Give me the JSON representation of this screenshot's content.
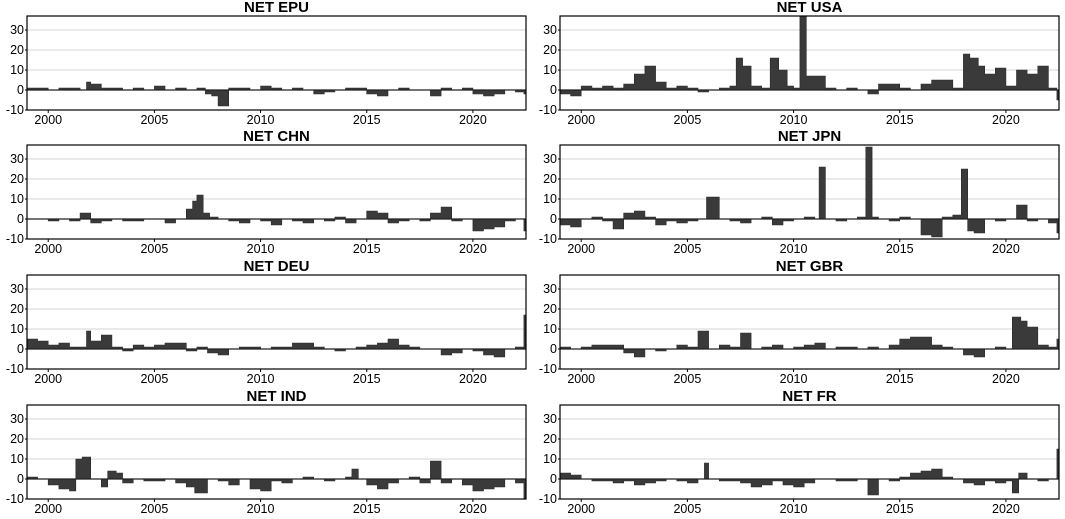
{
  "chart_data": [
    {
      "type": "area",
      "title": "NET EPU",
      "xlabel": "",
      "ylabel": "",
      "xlim": [
        1999.0,
        2022.5
      ],
      "ylim": [
        -10,
        37
      ],
      "yticks": [
        -10,
        0,
        10,
        20,
        30
      ],
      "xticks": [
        2000,
        2005,
        2010,
        2015,
        2020
      ],
      "grid": true,
      "x": [
        1999.0,
        1999.5,
        2000.0,
        2000.5,
        2001.0,
        2001.5,
        2001.8,
        2002.0,
        2002.5,
        2003.0,
        2003.5,
        2004.0,
        2004.5,
        2005.0,
        2005.5,
        2006.0,
        2006.5,
        2007.0,
        2007.4,
        2007.7,
        2008.0,
        2008.5,
        2009.0,
        2009.5,
        2010.0,
        2010.5,
        2011.0,
        2011.5,
        2012.0,
        2012.5,
        2013.0,
        2013.5,
        2014.0,
        2014.5,
        2015.0,
        2015.5,
        2016.0,
        2016.5,
        2017.0,
        2017.5,
        2018.0,
        2018.5,
        2019.0,
        2019.5,
        2020.0,
        2020.5,
        2021.0,
        2021.5,
        2022.0,
        2022.4
      ],
      "y": [
        1,
        1,
        0,
        1,
        1,
        0,
        4,
        3,
        1,
        1,
        0,
        1,
        0,
        2,
        0,
        1,
        0,
        1,
        -2,
        -3,
        -8,
        1,
        1,
        0,
        2,
        1,
        0,
        1,
        0,
        -2,
        -1,
        0,
        1,
        1,
        -2,
        -3,
        0,
        1,
        0,
        0,
        -3,
        1,
        0,
        1,
        -2,
        -3,
        -2,
        0,
        -1,
        -2
      ]
    },
    {
      "type": "area",
      "title": "NET USA",
      "xlabel": "",
      "ylabel": "",
      "xlim": [
        1999.0,
        2022.5
      ],
      "ylim": [
        -10,
        37
      ],
      "yticks": [
        -10,
        0,
        10,
        20,
        30
      ],
      "xticks": [
        2000,
        2005,
        2010,
        2015,
        2020
      ],
      "grid": true,
      "x": [
        1999.0,
        1999.5,
        2000.0,
        2000.5,
        2001.0,
        2001.5,
        2002.0,
        2002.5,
        2003.0,
        2003.5,
        2004.0,
        2004.5,
        2005.0,
        2005.5,
        2006.0,
        2006.5,
        2007.0,
        2007.3,
        2007.6,
        2008.0,
        2008.5,
        2008.9,
        2009.3,
        2009.7,
        2010.0,
        2010.3,
        2010.6,
        2011.0,
        2011.5,
        2012.0,
        2012.5,
        2013.0,
        2013.5,
        2014.0,
        2014.5,
        2015.0,
        2015.5,
        2016.0,
        2016.5,
        2017.0,
        2017.5,
        2018.0,
        2018.3,
        2018.7,
        2019.0,
        2019.5,
        2020.0,
        2020.5,
        2021.0,
        2021.5,
        2022.0,
        2022.4
      ],
      "y": [
        -2,
        -3,
        2,
        1,
        2,
        1,
        3,
        8,
        12,
        4,
        1,
        2,
        1,
        -1,
        0,
        1,
        2,
        16,
        12,
        2,
        1,
        16,
        10,
        2,
        1,
        37,
        7,
        7,
        1,
        0,
        1,
        0,
        -2,
        3,
        3,
        1,
        0,
        3,
        5,
        5,
        1,
        18,
        16,
        12,
        8,
        11,
        2,
        10,
        8,
        12,
        1,
        -5
      ]
    },
    {
      "type": "area",
      "title": "NET CHN",
      "xlabel": "",
      "ylabel": "",
      "xlim": [
        1999.0,
        2022.5
      ],
      "ylim": [
        -10,
        37
      ],
      "yticks": [
        -10,
        0,
        10,
        20,
        30
      ],
      "xticks": [
        2000,
        2005,
        2010,
        2015,
        2020
      ],
      "grid": true,
      "x": [
        1999.0,
        1999.5,
        2000.0,
        2000.5,
        2001.0,
        2001.5,
        2002.0,
        2002.5,
        2003.0,
        2003.5,
        2004.0,
        2004.5,
        2005.0,
        2005.5,
        2006.0,
        2006.5,
        2006.8,
        2007.0,
        2007.3,
        2007.6,
        2008.0,
        2008.5,
        2009.0,
        2009.5,
        2010.0,
        2010.5,
        2011.0,
        2011.5,
        2012.0,
        2012.5,
        2013.0,
        2013.5,
        2014.0,
        2014.5,
        2015.0,
        2015.5,
        2016.0,
        2016.5,
        2017.0,
        2017.5,
        2018.0,
        2018.5,
        2019.0,
        2019.5,
        2020.0,
        2020.5,
        2021.0,
        2021.5,
        2022.0,
        2022.4
      ],
      "y": [
        0,
        0,
        -1,
        0,
        -1,
        3,
        -2,
        -1,
        0,
        -1,
        -1,
        0,
        0,
        -2,
        0,
        5,
        9,
        12,
        3,
        1,
        0,
        -1,
        -2,
        0,
        -1,
        -3,
        0,
        -1,
        -2,
        0,
        -1,
        1,
        -2,
        0,
        4,
        3,
        -2,
        -1,
        0,
        -1,
        3,
        6,
        -1,
        0,
        -6,
        -5,
        -4,
        -1,
        0,
        -6
      ]
    },
    {
      "type": "area",
      "title": "NET JPN",
      "xlabel": "",
      "ylabel": "",
      "xlim": [
        1999.0,
        2022.5
      ],
      "ylim": [
        -10,
        37
      ],
      "yticks": [
        -10,
        0,
        10,
        20,
        30
      ],
      "xticks": [
        2000,
        2005,
        2010,
        2015,
        2020
      ],
      "grid": true,
      "x": [
        1999.0,
        1999.5,
        2000.0,
        2000.5,
        2001.0,
        2001.5,
        2002.0,
        2002.5,
        2003.0,
        2003.5,
        2004.0,
        2004.5,
        2005.0,
        2005.5,
        2005.9,
        2006.5,
        2007.0,
        2007.5,
        2008.0,
        2008.5,
        2009.0,
        2009.5,
        2010.0,
        2010.5,
        2011.0,
        2011.2,
        2011.5,
        2012.0,
        2012.5,
        2013.0,
        2013.4,
        2013.7,
        2014.0,
        2014.5,
        2015.0,
        2015.5,
        2016.0,
        2016.5,
        2017.0,
        2017.5,
        2017.9,
        2018.2,
        2018.5,
        2019.0,
        2019.5,
        2020.0,
        2020.5,
        2021.0,
        2021.5,
        2022.0,
        2022.4
      ],
      "y": [
        -3,
        -4,
        0,
        1,
        -1,
        -5,
        3,
        4,
        1,
        -3,
        -1,
        -2,
        -1,
        0,
        11,
        0,
        -1,
        -2,
        0,
        1,
        -3,
        -1,
        0,
        1,
        0,
        26,
        0,
        -1,
        0,
        1,
        36,
        1,
        0,
        -1,
        1,
        0,
        -8,
        -9,
        1,
        2,
        25,
        -6,
        -7,
        0,
        -1,
        0,
        7,
        -1,
        0,
        -2,
        -7
      ]
    },
    {
      "type": "area",
      "title": "NET DEU",
      "xlabel": "",
      "ylabel": "",
      "xlim": [
        1999.0,
        2022.5
      ],
      "ylim": [
        -10,
        37
      ],
      "yticks": [
        -10,
        0,
        10,
        20,
        30
      ],
      "xticks": [
        2000,
        2005,
        2010,
        2015,
        2020
      ],
      "grid": true,
      "x": [
        1999.0,
        1999.5,
        2000.0,
        2000.5,
        2001.0,
        2001.5,
        2001.8,
        2002.0,
        2002.5,
        2003.0,
        2003.5,
        2004.0,
        2004.5,
        2005.0,
        2005.5,
        2006.0,
        2006.5,
        2007.0,
        2007.5,
        2008.0,
        2008.5,
        2009.0,
        2009.5,
        2010.0,
        2010.5,
        2011.0,
        2011.5,
        2012.0,
        2012.5,
        2013.0,
        2013.5,
        2014.0,
        2014.5,
        2015.0,
        2015.5,
        2016.0,
        2016.5,
        2017.0,
        2017.5,
        2018.0,
        2018.5,
        2019.0,
        2019.5,
        2020.0,
        2020.5,
        2021.0,
        2021.5,
        2022.0,
        2022.4
      ],
      "y": [
        5,
        4,
        2,
        3,
        1,
        1,
        9,
        4,
        7,
        1,
        -1,
        2,
        1,
        2,
        3,
        3,
        -1,
        1,
        -2,
        -3,
        0,
        1,
        1,
        0,
        1,
        1,
        3,
        3,
        1,
        0,
        -1,
        0,
        1,
        2,
        3,
        5,
        2,
        1,
        0,
        0,
        -3,
        -2,
        0,
        -1,
        -3,
        -4,
        0,
        1,
        17
      ]
    },
    {
      "type": "area",
      "title": "NET GBR",
      "xlabel": "",
      "ylabel": "",
      "xlim": [
        1999.0,
        2022.5
      ],
      "ylim": [
        -10,
        37
      ],
      "yticks": [
        -10,
        0,
        10,
        20,
        30
      ],
      "xticks": [
        2000,
        2005,
        2010,
        2015,
        2020
      ],
      "grid": true,
      "x": [
        1999.0,
        1999.5,
        2000.0,
        2000.5,
        2001.0,
        2001.5,
        2002.0,
        2002.5,
        2003.0,
        2003.5,
        2004.0,
        2004.5,
        2005.0,
        2005.5,
        2006.0,
        2006.5,
        2007.0,
        2007.5,
        2008.0,
        2008.5,
        2009.0,
        2009.5,
        2010.0,
        2010.5,
        2011.0,
        2011.5,
        2012.0,
        2012.5,
        2013.0,
        2013.5,
        2014.0,
        2014.5,
        2015.0,
        2015.5,
        2016.0,
        2016.5,
        2017.0,
        2017.5,
        2018.0,
        2018.5,
        2019.0,
        2019.5,
        2020.0,
        2020.3,
        2020.7,
        2021.0,
        2021.5,
        2022.0,
        2022.4
      ],
      "y": [
        1,
        0,
        1,
        2,
        2,
        2,
        -2,
        -4,
        0,
        -1,
        0,
        2,
        1,
        9,
        0,
        2,
        1,
        8,
        0,
        1,
        2,
        0,
        1,
        2,
        3,
        0,
        1,
        1,
        0,
        1,
        0,
        2,
        5,
        6,
        6,
        2,
        1,
        0,
        -3,
        -4,
        0,
        1,
        0,
        16,
        14,
        11,
        2,
        1,
        5
      ]
    },
    {
      "type": "area",
      "title": "NET IND",
      "xlabel": "",
      "ylabel": "",
      "xlim": [
        1999.0,
        2022.5
      ],
      "ylim": [
        -10,
        37
      ],
      "yticks": [
        -10,
        0,
        10,
        20,
        30
      ],
      "xticks": [
        2000,
        2005,
        2010,
        2015,
        2020
      ],
      "grid": true,
      "x": [
        1999.0,
        1999.5,
        2000.0,
        2000.5,
        2001.0,
        2001.3,
        2001.6,
        2002.0,
        2002.5,
        2002.8,
        2003.2,
        2003.5,
        2004.0,
        2004.5,
        2005.0,
        2005.5,
        2006.0,
        2006.5,
        2006.9,
        2007.5,
        2008.0,
        2008.5,
        2009.0,
        2009.5,
        2010.0,
        2010.5,
        2011.0,
        2011.5,
        2012.0,
        2012.5,
        2013.0,
        2013.5,
        2014.0,
        2014.3,
        2014.6,
        2015.0,
        2015.5,
        2016.0,
        2016.5,
        2017.0,
        2017.5,
        2018.0,
        2018.5,
        2019.0,
        2019.5,
        2020.0,
        2020.5,
        2021.0,
        2021.5,
        2022.0,
        2022.4
      ],
      "y": [
        1,
        0,
        -3,
        -5,
        -6,
        10,
        11,
        0,
        -4,
        4,
        3,
        -2,
        0,
        -1,
        -1,
        0,
        -2,
        -4,
        -7,
        0,
        -1,
        -3,
        0,
        -5,
        -6,
        -1,
        -2,
        0,
        1,
        0,
        -1,
        0,
        1,
        5,
        0,
        -3,
        -5,
        -2,
        0,
        1,
        -2,
        9,
        -2,
        0,
        -3,
        -6,
        -5,
        -4,
        0,
        -2,
        -10
      ]
    },
    {
      "type": "area",
      "title": "NET FR",
      "xlabel": "",
      "ylabel": "",
      "xlim": [
        1999.0,
        2022.5
      ],
      "ylim": [
        -10,
        37
      ],
      "yticks": [
        -10,
        0,
        10,
        20,
        30
      ],
      "xticks": [
        2000,
        2005,
        2010,
        2015,
        2020
      ],
      "grid": true,
      "x": [
        1999.0,
        1999.5,
        2000.0,
        2000.5,
        2001.0,
        2001.5,
        2002.0,
        2002.5,
        2003.0,
        2003.5,
        2004.0,
        2004.5,
        2005.0,
        2005.5,
        2005.8,
        2006.0,
        2006.5,
        2007.0,
        2007.5,
        2008.0,
        2008.5,
        2009.0,
        2009.5,
        2010.0,
        2010.5,
        2011.0,
        2011.5,
        2012.0,
        2012.5,
        2013.0,
        2013.5,
        2014.0,
        2014.5,
        2015.0,
        2015.5,
        2016.0,
        2016.5,
        2017.0,
        2017.5,
        2018.0,
        2018.5,
        2019.0,
        2019.5,
        2020.0,
        2020.3,
        2020.6,
        2021.0,
        2021.5,
        2022.0,
        2022.4
      ],
      "y": [
        3,
        2,
        0,
        -1,
        -1,
        -2,
        -1,
        -3,
        -2,
        -1,
        0,
        -1,
        -2,
        0,
        8,
        0,
        -1,
        -1,
        -2,
        -4,
        -3,
        -1,
        -3,
        -4,
        -2,
        0,
        0,
        -1,
        -1,
        0,
        -8,
        0,
        -1,
        1,
        3,
        4,
        5,
        1,
        0,
        -2,
        -3,
        -1,
        -2,
        -1,
        -7,
        3,
        0,
        -1,
        0,
        15
      ]
    }
  ]
}
